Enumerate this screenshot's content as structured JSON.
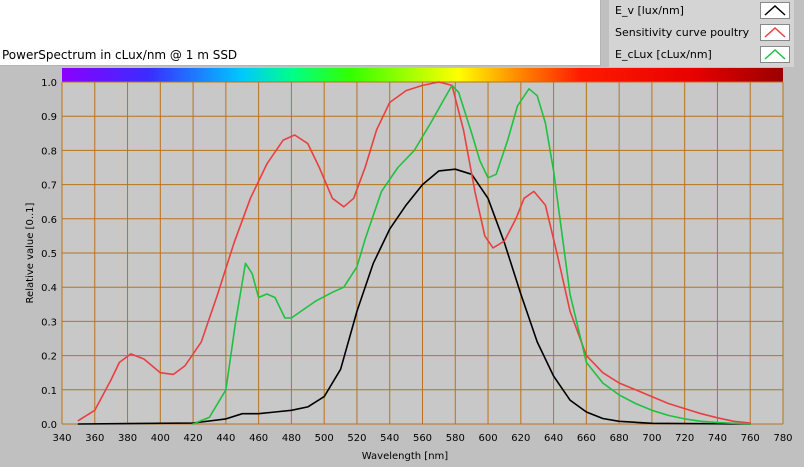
{
  "chart_data": {
    "type": "line",
    "title": "PowerSpectrum in cLux/nm @ 1 m SSD",
    "xlabel": "Wavelength [nm]",
    "ylabel": "Relative value [0..1]",
    "xlim": [
      340,
      780
    ],
    "ylim": [
      0,
      1.0
    ],
    "x_ticks": [
      340,
      360,
      380,
      400,
      420,
      440,
      460,
      480,
      500,
      520,
      540,
      560,
      580,
      600,
      620,
      640,
      660,
      680,
      700,
      720,
      740,
      760,
      780
    ],
    "y_ticks": [
      "0.0",
      "0.1",
      "0.2",
      "0.3",
      "0.4",
      "0.5",
      "0.6",
      "0.7",
      "0.8",
      "0.9",
      "1.0"
    ],
    "grid": true,
    "legend_position": "top-right",
    "colors": {
      "plot_background": "#c8c8c8",
      "grid": "#b8731a",
      "ev": "#000000",
      "poultry": "#e84040",
      "eclux": "#20c040"
    },
    "series": [
      {
        "name": "E_v [lux/nm]",
        "color": "#000000",
        "points": [
          [
            350,
            0
          ],
          [
            420,
            0.003
          ],
          [
            440,
            0.015
          ],
          [
            450,
            0.03
          ],
          [
            460,
            0.03
          ],
          [
            470,
            0.035
          ],
          [
            480,
            0.04
          ],
          [
            490,
            0.05
          ],
          [
            500,
            0.08
          ],
          [
            510,
            0.16
          ],
          [
            520,
            0.33
          ],
          [
            530,
            0.47
          ],
          [
            540,
            0.57
          ],
          [
            550,
            0.64
          ],
          [
            560,
            0.7
          ],
          [
            570,
            0.74
          ],
          [
            580,
            0.745
          ],
          [
            590,
            0.73
          ],
          [
            600,
            0.66
          ],
          [
            610,
            0.53
          ],
          [
            620,
            0.38
          ],
          [
            630,
            0.24
          ],
          [
            640,
            0.14
          ],
          [
            650,
            0.07
          ],
          [
            660,
            0.035
          ],
          [
            670,
            0.016
          ],
          [
            680,
            0.008
          ],
          [
            700,
            0.002
          ],
          [
            760,
            0
          ]
        ]
      },
      {
        "name": "Sensitivity curve poultry",
        "color": "#e84040",
        "points": [
          [
            350,
            0.01
          ],
          [
            360,
            0.04
          ],
          [
            370,
            0.13
          ],
          [
            375,
            0.18
          ],
          [
            382,
            0.205
          ],
          [
            390,
            0.19
          ],
          [
            400,
            0.15
          ],
          [
            408,
            0.145
          ],
          [
            415,
            0.17
          ],
          [
            425,
            0.24
          ],
          [
            435,
            0.38
          ],
          [
            445,
            0.53
          ],
          [
            455,
            0.66
          ],
          [
            465,
            0.76
          ],
          [
            475,
            0.83
          ],
          [
            482,
            0.845
          ],
          [
            490,
            0.82
          ],
          [
            497,
            0.75
          ],
          [
            505,
            0.66
          ],
          [
            512,
            0.635
          ],
          [
            518,
            0.66
          ],
          [
            525,
            0.75
          ],
          [
            532,
            0.86
          ],
          [
            540,
            0.94
          ],
          [
            550,
            0.975
          ],
          [
            560,
            0.99
          ],
          [
            570,
            1.0
          ],
          [
            578,
            0.99
          ],
          [
            585,
            0.86
          ],
          [
            592,
            0.68
          ],
          [
            598,
            0.55
          ],
          [
            603,
            0.515
          ],
          [
            610,
            0.535
          ],
          [
            617,
            0.6
          ],
          [
            622,
            0.66
          ],
          [
            628,
            0.68
          ],
          [
            635,
            0.64
          ],
          [
            642,
            0.5
          ],
          [
            650,
            0.33
          ],
          [
            660,
            0.2
          ],
          [
            670,
            0.15
          ],
          [
            680,
            0.12
          ],
          [
            690,
            0.1
          ],
          [
            700,
            0.08
          ],
          [
            710,
            0.06
          ],
          [
            720,
            0.045
          ],
          [
            730,
            0.03
          ],
          [
            740,
            0.018
          ],
          [
            750,
            0.008
          ],
          [
            760,
            0.003
          ]
        ]
      },
      {
        "name": "E_cLux [cLux/nm]",
        "color": "#20c040",
        "points": [
          [
            420,
            0
          ],
          [
            430,
            0.02
          ],
          [
            440,
            0.1
          ],
          [
            446,
            0.3
          ],
          [
            452,
            0.47
          ],
          [
            456,
            0.44
          ],
          [
            460,
            0.37
          ],
          [
            465,
            0.38
          ],
          [
            470,
            0.37
          ],
          [
            476,
            0.31
          ],
          [
            480,
            0.31
          ],
          [
            486,
            0.33
          ],
          [
            495,
            0.36
          ],
          [
            505,
            0.385
          ],
          [
            512,
            0.4
          ],
          [
            520,
            0.46
          ],
          [
            525,
            0.54
          ],
          [
            535,
            0.68
          ],
          [
            545,
            0.75
          ],
          [
            555,
            0.8
          ],
          [
            565,
            0.88
          ],
          [
            572,
            0.94
          ],
          [
            578,
            0.99
          ],
          [
            582,
            0.97
          ],
          [
            590,
            0.85
          ],
          [
            595,
            0.77
          ],
          [
            600,
            0.72
          ],
          [
            605,
            0.73
          ],
          [
            612,
            0.83
          ],
          [
            618,
            0.93
          ],
          [
            625,
            0.98
          ],
          [
            630,
            0.96
          ],
          [
            635,
            0.88
          ],
          [
            640,
            0.74
          ],
          [
            645,
            0.56
          ],
          [
            650,
            0.38
          ],
          [
            660,
            0.18
          ],
          [
            670,
            0.12
          ],
          [
            680,
            0.085
          ],
          [
            690,
            0.06
          ],
          [
            700,
            0.04
          ],
          [
            710,
            0.025
          ],
          [
            720,
            0.015
          ],
          [
            730,
            0.008
          ],
          [
            740,
            0.004
          ],
          [
            760,
            0
          ]
        ]
      }
    ]
  }
}
